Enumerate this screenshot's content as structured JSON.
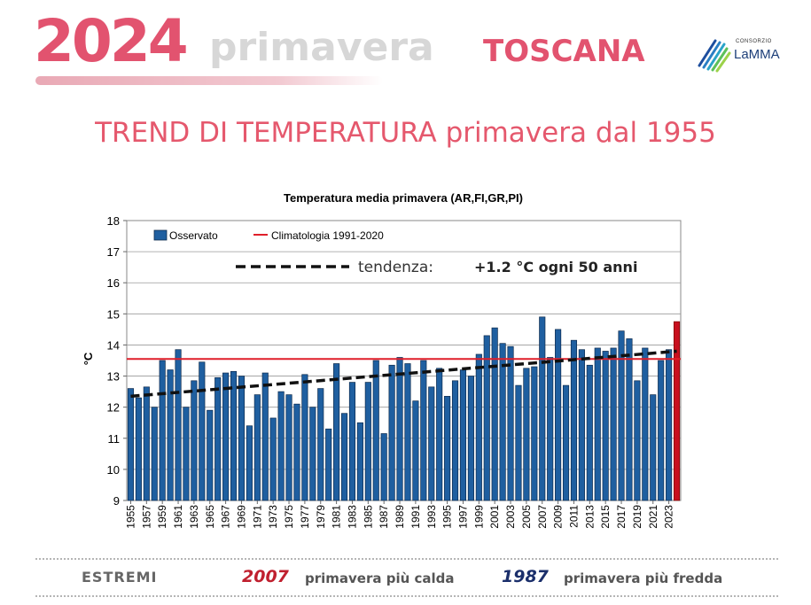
{
  "header": {
    "year": "2024",
    "season": "primavera",
    "region": "TOSCANA",
    "logo_top": "CONSORZIO",
    "logo_name": "LaMMA"
  },
  "title": "TREND DI TEMPERATURA primavera dal 1955",
  "footer": {
    "label": "ESTREMI",
    "hottest_year": "2007",
    "hottest_text": "primavera più calda",
    "coldest_year": "1987",
    "coldest_text": "primavera più fredda"
  },
  "colors": {
    "bar": "#1f5fa0",
    "bar_border": "#0d2a4c",
    "highlight": "#c8101f",
    "climatology": "#e01f2a",
    "trend": "#111111",
    "accent": "#e2536f"
  },
  "chart_data": {
    "type": "bar",
    "title": "Temperatura media primavera (AR,FI,GR,PI)",
    "ylabel": "°C",
    "xlabel": "",
    "ylim": [
      9,
      18
    ],
    "yticks": [
      9,
      10,
      11,
      12,
      13,
      14,
      15,
      16,
      17,
      18
    ],
    "categories": [
      "1955",
      "1956",
      "1957",
      "1958",
      "1959",
      "1960",
      "1961",
      "1962",
      "1963",
      "1964",
      "1965",
      "1966",
      "1967",
      "1968",
      "1969",
      "1970",
      "1971",
      "1972",
      "1973",
      "1974",
      "1975",
      "1976",
      "1977",
      "1978",
      "1979",
      "1980",
      "1981",
      "1982",
      "1983",
      "1984",
      "1985",
      "1986",
      "1987",
      "1988",
      "1989",
      "1990",
      "1991",
      "1992",
      "1993",
      "1994",
      "1995",
      "1996",
      "1997",
      "1998",
      "1999",
      "2000",
      "2001",
      "2002",
      "2003",
      "2004",
      "2005",
      "2006",
      "2007",
      "2008",
      "2009",
      "2010",
      "2011",
      "2012",
      "2013",
      "2014",
      "2015",
      "2016",
      "2017",
      "2018",
      "2019",
      "2020",
      "2021",
      "2022",
      "2023",
      "2024"
    ],
    "tick_labels": [
      "1955",
      "1957",
      "1959",
      "1961",
      "1963",
      "1965",
      "1967",
      "1969",
      "1971",
      "1973",
      "1975",
      "1977",
      "1979",
      "1981",
      "1983",
      "1985",
      "1987",
      "1989",
      "1991",
      "1993",
      "1995",
      "1997",
      "1999",
      "2001",
      "2003",
      "2005",
      "2007",
      "2009",
      "2011",
      "2013",
      "2015",
      "2017",
      "2019",
      "2021",
      "2023"
    ],
    "series": [
      {
        "name": "Osservato",
        "values": [
          12.6,
          12.3,
          12.65,
          12.0,
          13.5,
          13.2,
          13.85,
          12.0,
          12.85,
          13.45,
          11.9,
          12.95,
          13.1,
          13.15,
          13.0,
          11.4,
          12.4,
          13.1,
          11.65,
          12.5,
          12.4,
          12.1,
          13.05,
          12.0,
          12.6,
          11.3,
          13.4,
          11.8,
          12.8,
          11.5,
          12.8,
          13.5,
          11.15,
          13.35,
          13.6,
          13.4,
          12.2,
          13.5,
          12.65,
          13.25,
          12.35,
          12.85,
          13.2,
          13.0,
          13.7,
          14.3,
          14.55,
          14.05,
          13.95,
          12.7,
          13.25,
          13.3,
          14.9,
          13.6,
          14.5,
          12.7,
          14.15,
          13.85,
          13.35,
          13.9,
          13.8,
          13.9,
          14.45,
          14.2,
          12.85,
          13.9,
          12.4,
          13.5,
          13.85,
          14.75
        ]
      }
    ],
    "highlight": {
      "category": "2024",
      "value": 14.75
    },
    "climatology": {
      "name": "Climatologia 1991-2020",
      "value": 13.55
    },
    "trend": {
      "name": "tendenza",
      "start": 12.35,
      "end": 13.8
    },
    "trend_label_prefix": "tendenza:",
    "trend_label_value": "+1.2 °C ogni 50 anni",
    "legend": [
      "Osservato",
      "Climatologia 1991-2020"
    ],
    "legend_position": "top-left",
    "grid": true
  }
}
